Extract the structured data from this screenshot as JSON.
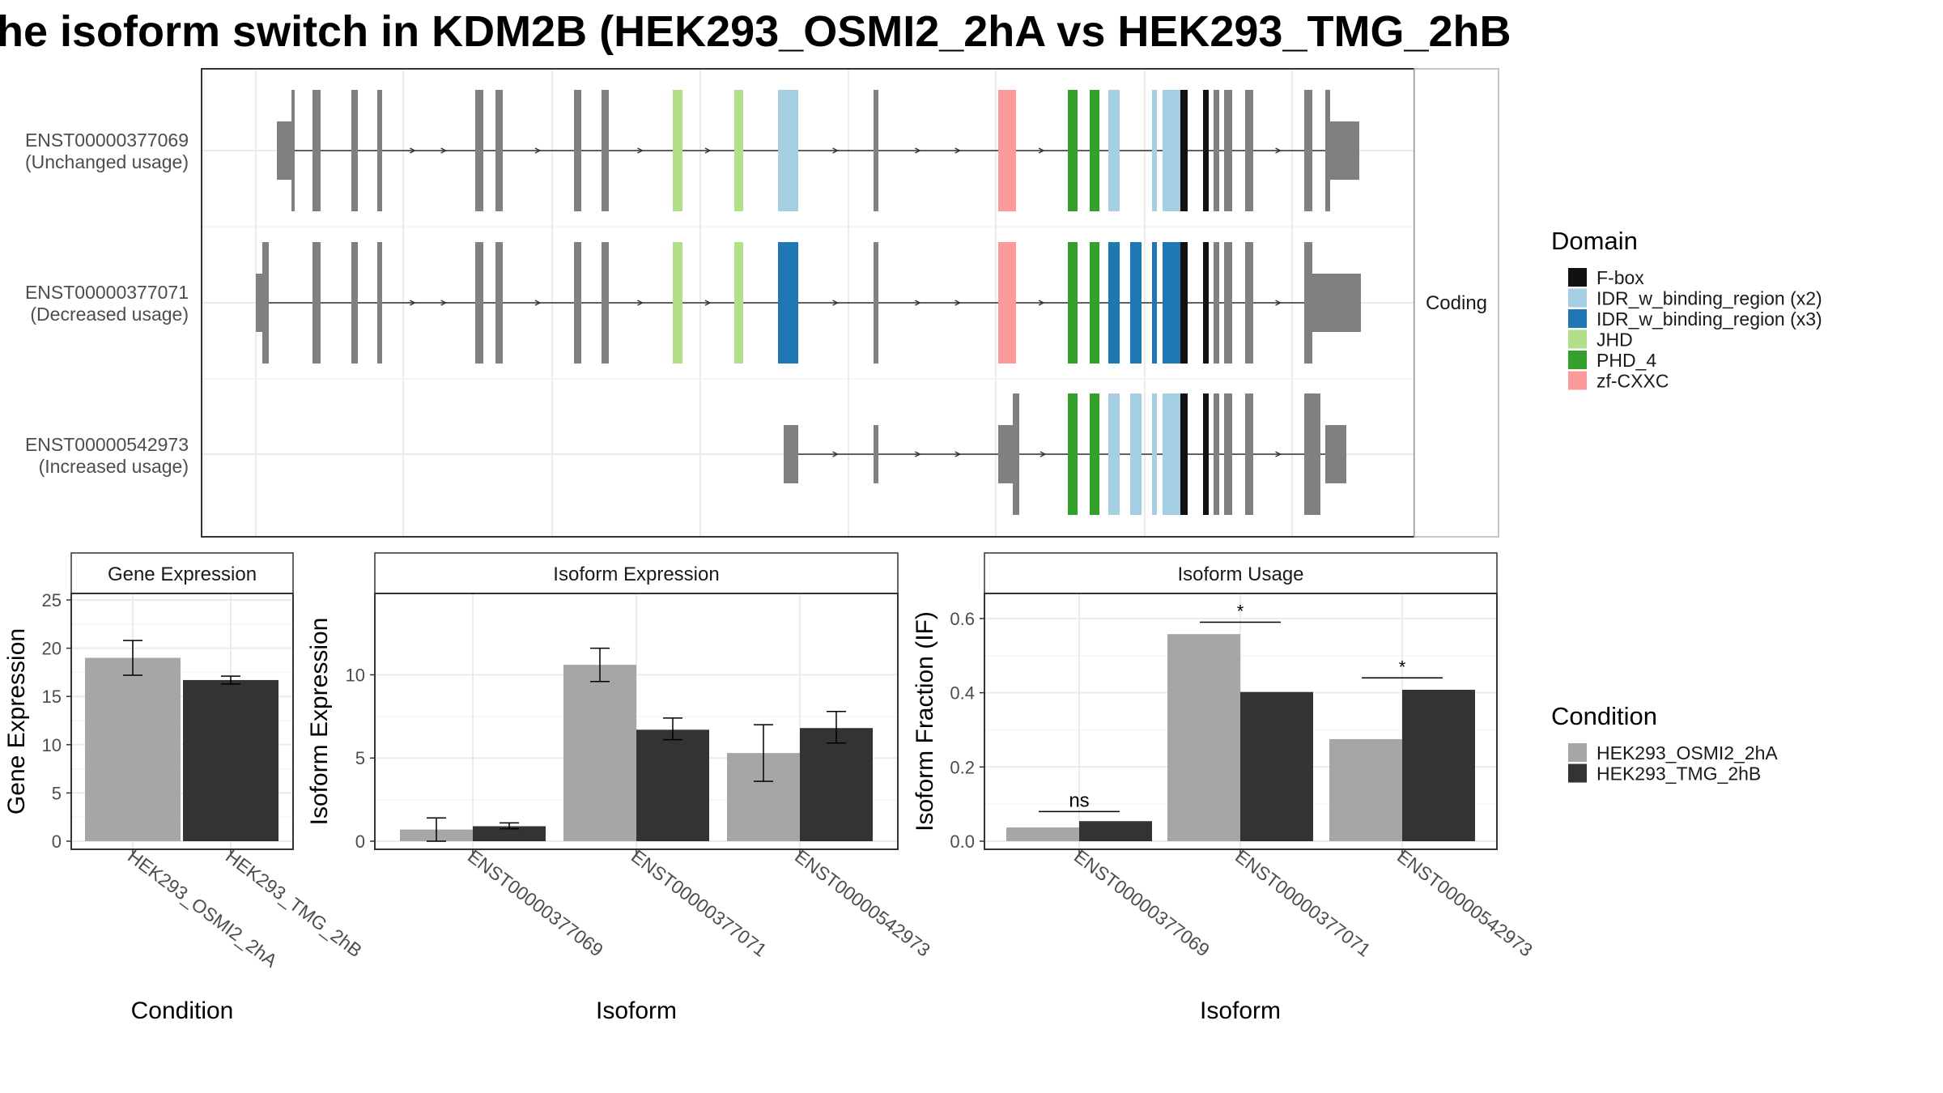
{
  "title": "he isoform switch in KDM2B (HEK293_OSMI2_2hA vs HEK293_TMG_2hB",
  "structure": {
    "strip_label": "Coding",
    "isoforms": [
      {
        "id": "ENST00000377069",
        "usage": "(Unchanged usage)"
      },
      {
        "id": "ENST00000377071",
        "usage": "(Decreased usage)"
      },
      {
        "id": "ENST00000542973",
        "usage": "(Increased usage)"
      }
    ],
    "domain_legend": {
      "title": "Domain",
      "items": [
        {
          "name": "F-box",
          "color": "#111111"
        },
        {
          "name": "IDR_w_binding_region (x2)",
          "color": "#a6cee3"
        },
        {
          "name": "IDR_w_binding_region (x3)",
          "color": "#1f78b4"
        },
        {
          "name": "JHD",
          "color": "#b2df8a"
        },
        {
          "name": "PHD_4",
          "color": "#33a02c"
        },
        {
          "name": "zf-CXXC",
          "color": "#fb9a99"
        }
      ]
    }
  },
  "condition_legend": {
    "title": "Condition",
    "items": [
      {
        "name": "HEK293_OSMI2_2hA",
        "color": "#a6a6a6"
      },
      {
        "name": "HEK293_TMG_2hB",
        "color": "#333333"
      }
    ]
  },
  "chart_data": [
    {
      "type": "bar",
      "title": "Gene Expression",
      "xlabel": "Condition",
      "ylabel": "Gene Expression",
      "ylim": [
        0,
        25
      ],
      "yticks": [
        0,
        5,
        10,
        15,
        20,
        25
      ],
      "categories": [
        "HEK293_OSMI2_2hA",
        "HEK293_TMG_2hB"
      ],
      "values": [
        19.0,
        16.7
      ],
      "errors": [
        [
          17.2,
          20.8
        ],
        [
          16.3,
          17.1
        ]
      ],
      "colors": [
        "#a6a6a6",
        "#333333"
      ]
    },
    {
      "type": "bar",
      "title": "Isoform Expression",
      "xlabel": "Isoform",
      "ylabel": "Isoform Expression",
      "ylim": [
        0,
        14.5
      ],
      "yticks": [
        0,
        5,
        10
      ],
      "categories": [
        "ENST00000377069",
        "ENST00000377071",
        "ENST00000542973"
      ],
      "series": [
        {
          "name": "HEK293_OSMI2_2hA",
          "values": [
            0.7,
            10.6,
            5.3
          ],
          "errors": [
            [
              0.0,
              1.4
            ],
            [
              9.6,
              11.6
            ],
            [
              3.6,
              7.0
            ]
          ]
        },
        {
          "name": "HEK293_TMG_2hB",
          "values": [
            0.9,
            6.7,
            6.8
          ],
          "errors": [
            [
              0.75,
              1.1
            ],
            [
              6.1,
              7.4
            ],
            [
              5.9,
              7.8
            ]
          ]
        }
      ]
    },
    {
      "type": "bar",
      "title": "Isoform Usage",
      "xlabel": "Isoform",
      "ylabel": "Isoform Fraction (IF)",
      "ylim": [
        0,
        0.65
      ],
      "yticks": [
        0.0,
        0.2,
        0.4,
        0.6
      ],
      "ytick_labels": [
        "0.0",
        "0.2",
        "0.4",
        "0.6"
      ],
      "categories": [
        "ENST00000377069",
        "ENST00000377071",
        "ENST00000542973"
      ],
      "series": [
        {
          "name": "HEK293_OSMI2_2hA",
          "values": [
            0.037,
            0.558,
            0.275
          ]
        },
        {
          "name": "HEK293_TMG_2hB",
          "values": [
            0.054,
            0.402,
            0.408
          ]
        }
      ],
      "annotations": [
        {
          "category": "ENST00000377069",
          "label": "ns",
          "y": 0.08
        },
        {
          "category": "ENST00000377071",
          "label": "*",
          "y": 0.59
        },
        {
          "category": "ENST00000542973",
          "label": "*",
          "y": 0.44
        }
      ]
    }
  ]
}
